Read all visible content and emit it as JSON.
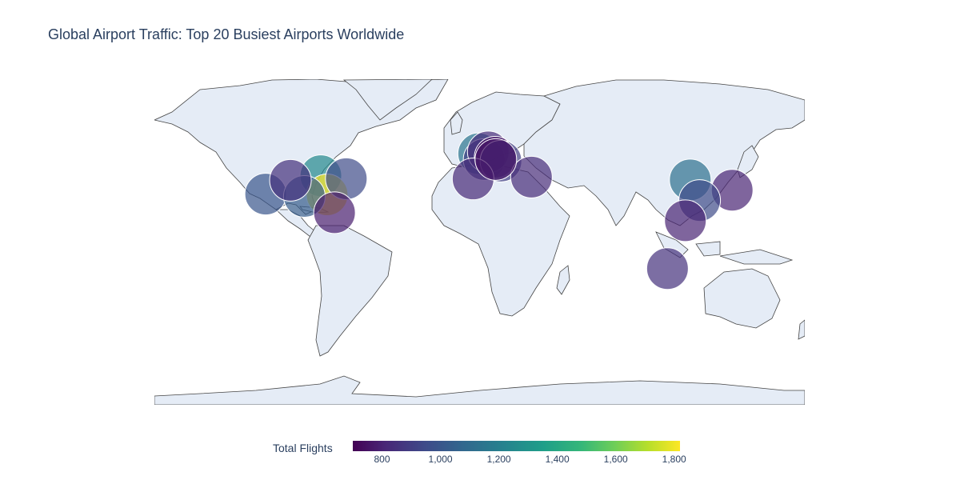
{
  "title": "Global Airport Traffic: Top 20 Busiest Airports Worldwide",
  "colorbar": {
    "title": "Total Flights",
    "min": 700,
    "max": 1820,
    "ticks": [
      {
        "value": 800,
        "label": "800"
      },
      {
        "value": 1000,
        "label": "1,000"
      },
      {
        "value": 1200,
        "label": "1,200"
      },
      {
        "value": 1400,
        "label": "1,400"
      },
      {
        "value": 1600,
        "label": "1,600"
      },
      {
        "value": 1800,
        "label": "1,800"
      }
    ]
  },
  "colors": {
    "land": "#e5ecf6",
    "coast": "#444444",
    "title": "#2a3f5f",
    "colorscale": "viridis"
  },
  "chart_data": {
    "type": "scatter",
    "map": "world-land",
    "marker_color_key": "Total Flights",
    "points": [
      {
        "lat": 33.9,
        "lon": -118.4,
        "flights": 1000
      },
      {
        "lat": 41.9,
        "lon": -87.9,
        "flights": 1250
      },
      {
        "lat": 33.6,
        "lon": -84.4,
        "flights": 1820
      },
      {
        "lat": 32.9,
        "lon": -97.0,
        "flights": 1030
      },
      {
        "lat": 39.9,
        "lon": -104.7,
        "flights": 850
      },
      {
        "lat": 40.6,
        "lon": -73.8,
        "flights": 950
      },
      {
        "lat": 25.8,
        "lon": -80.3,
        "flights": 780
      },
      {
        "lat": 51.5,
        "lon": -0.5,
        "flights": 1150
      },
      {
        "lat": 49.0,
        "lon": 2.5,
        "flights": 900
      },
      {
        "lat": 52.3,
        "lon": 4.8,
        "flights": 830
      },
      {
        "lat": 50.0,
        "lon": 8.6,
        "flights": 750
      },
      {
        "lat": 48.3,
        "lon": 11.8,
        "flights": 900
      },
      {
        "lat": 40.5,
        "lon": -3.6,
        "flights": 820
      },
      {
        "lat": 41.3,
        "lon": 28.7,
        "flights": 830
      },
      {
        "lat": 40.1,
        "lon": 116.6,
        "flights": 1120
      },
      {
        "lat": 35.6,
        "lon": 139.8,
        "flights": 800
      },
      {
        "lat": 31.1,
        "lon": 121.8,
        "flights": 950
      },
      {
        "lat": 22.3,
        "lon": 113.9,
        "flights": 800
      },
      {
        "lat": 1.4,
        "lon": 104.0,
        "flights": 850
      },
      {
        "lat": 49.0,
        "lon": 9.0,
        "flights": 760
      }
    ]
  }
}
